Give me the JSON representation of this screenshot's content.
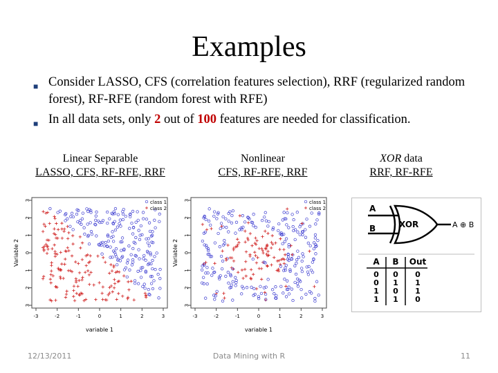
{
  "slide": {
    "title": "Examples",
    "bullets": [
      {
        "text": "Consider LASSO, CFS (correlation features selection), RRF (regularized random forest), RF-RFE (random forest with RFE)"
      },
      {
        "pre": "In all data sets, only ",
        "n1": "2",
        "mid": " out of ",
        "n2": "100",
        "post": " features are needed for classification."
      }
    ],
    "captions": [
      {
        "head": "Linear Separable",
        "methods": "LASSO, CFS, RF-RFE, RRF"
      },
      {
        "head": "Nonlinear",
        "methods": "CFS, RF-RFE, RRF"
      },
      {
        "head_italic": "XOR",
        "head_rest": " data",
        "methods": "RRF, RF-RFE"
      }
    ],
    "footer": {
      "date": "12/13/2011",
      "center": "Data Mining with R",
      "page": "11"
    }
  },
  "plots": [
    {
      "xlabel": "variable 1",
      "ylabel": "Variable 2",
      "xticks": [
        "-3",
        "-2",
        "-1",
        "0",
        "1",
        "2",
        "3"
      ],
      "yticks": [
        "3",
        "2",
        "1",
        "0",
        "1",
        "2",
        "3"
      ],
      "legend": [
        "class 1",
        "class 2"
      ],
      "colors": {
        "class1": "#3b3bd0",
        "class2": "#d02020"
      }
    },
    {
      "xlabel": "variable 1",
      "ylabel": "Variable 2",
      "xticks": [
        "-3",
        "-2",
        "-1",
        "0",
        "1",
        "2",
        "3"
      ],
      "yticks": [
        "3",
        "2",
        "1",
        "0",
        "1",
        "2",
        "3"
      ],
      "legend": [
        "class 1",
        "class 2"
      ],
      "colors": {
        "class1": "#3b3bd0",
        "class2": "#d02020"
      }
    }
  ],
  "xor": {
    "inputs": [
      "A",
      "B"
    ],
    "gate_label": "XOR",
    "output_label": "A ⊕ B",
    "table": {
      "headers": [
        "A",
        "B",
        "Out"
      ],
      "rows": [
        [
          "0",
          "0",
          "0"
        ],
        [
          "0",
          "1",
          "1"
        ],
        [
          "1",
          "0",
          "1"
        ],
        [
          "1",
          "1",
          "0"
        ]
      ]
    }
  }
}
